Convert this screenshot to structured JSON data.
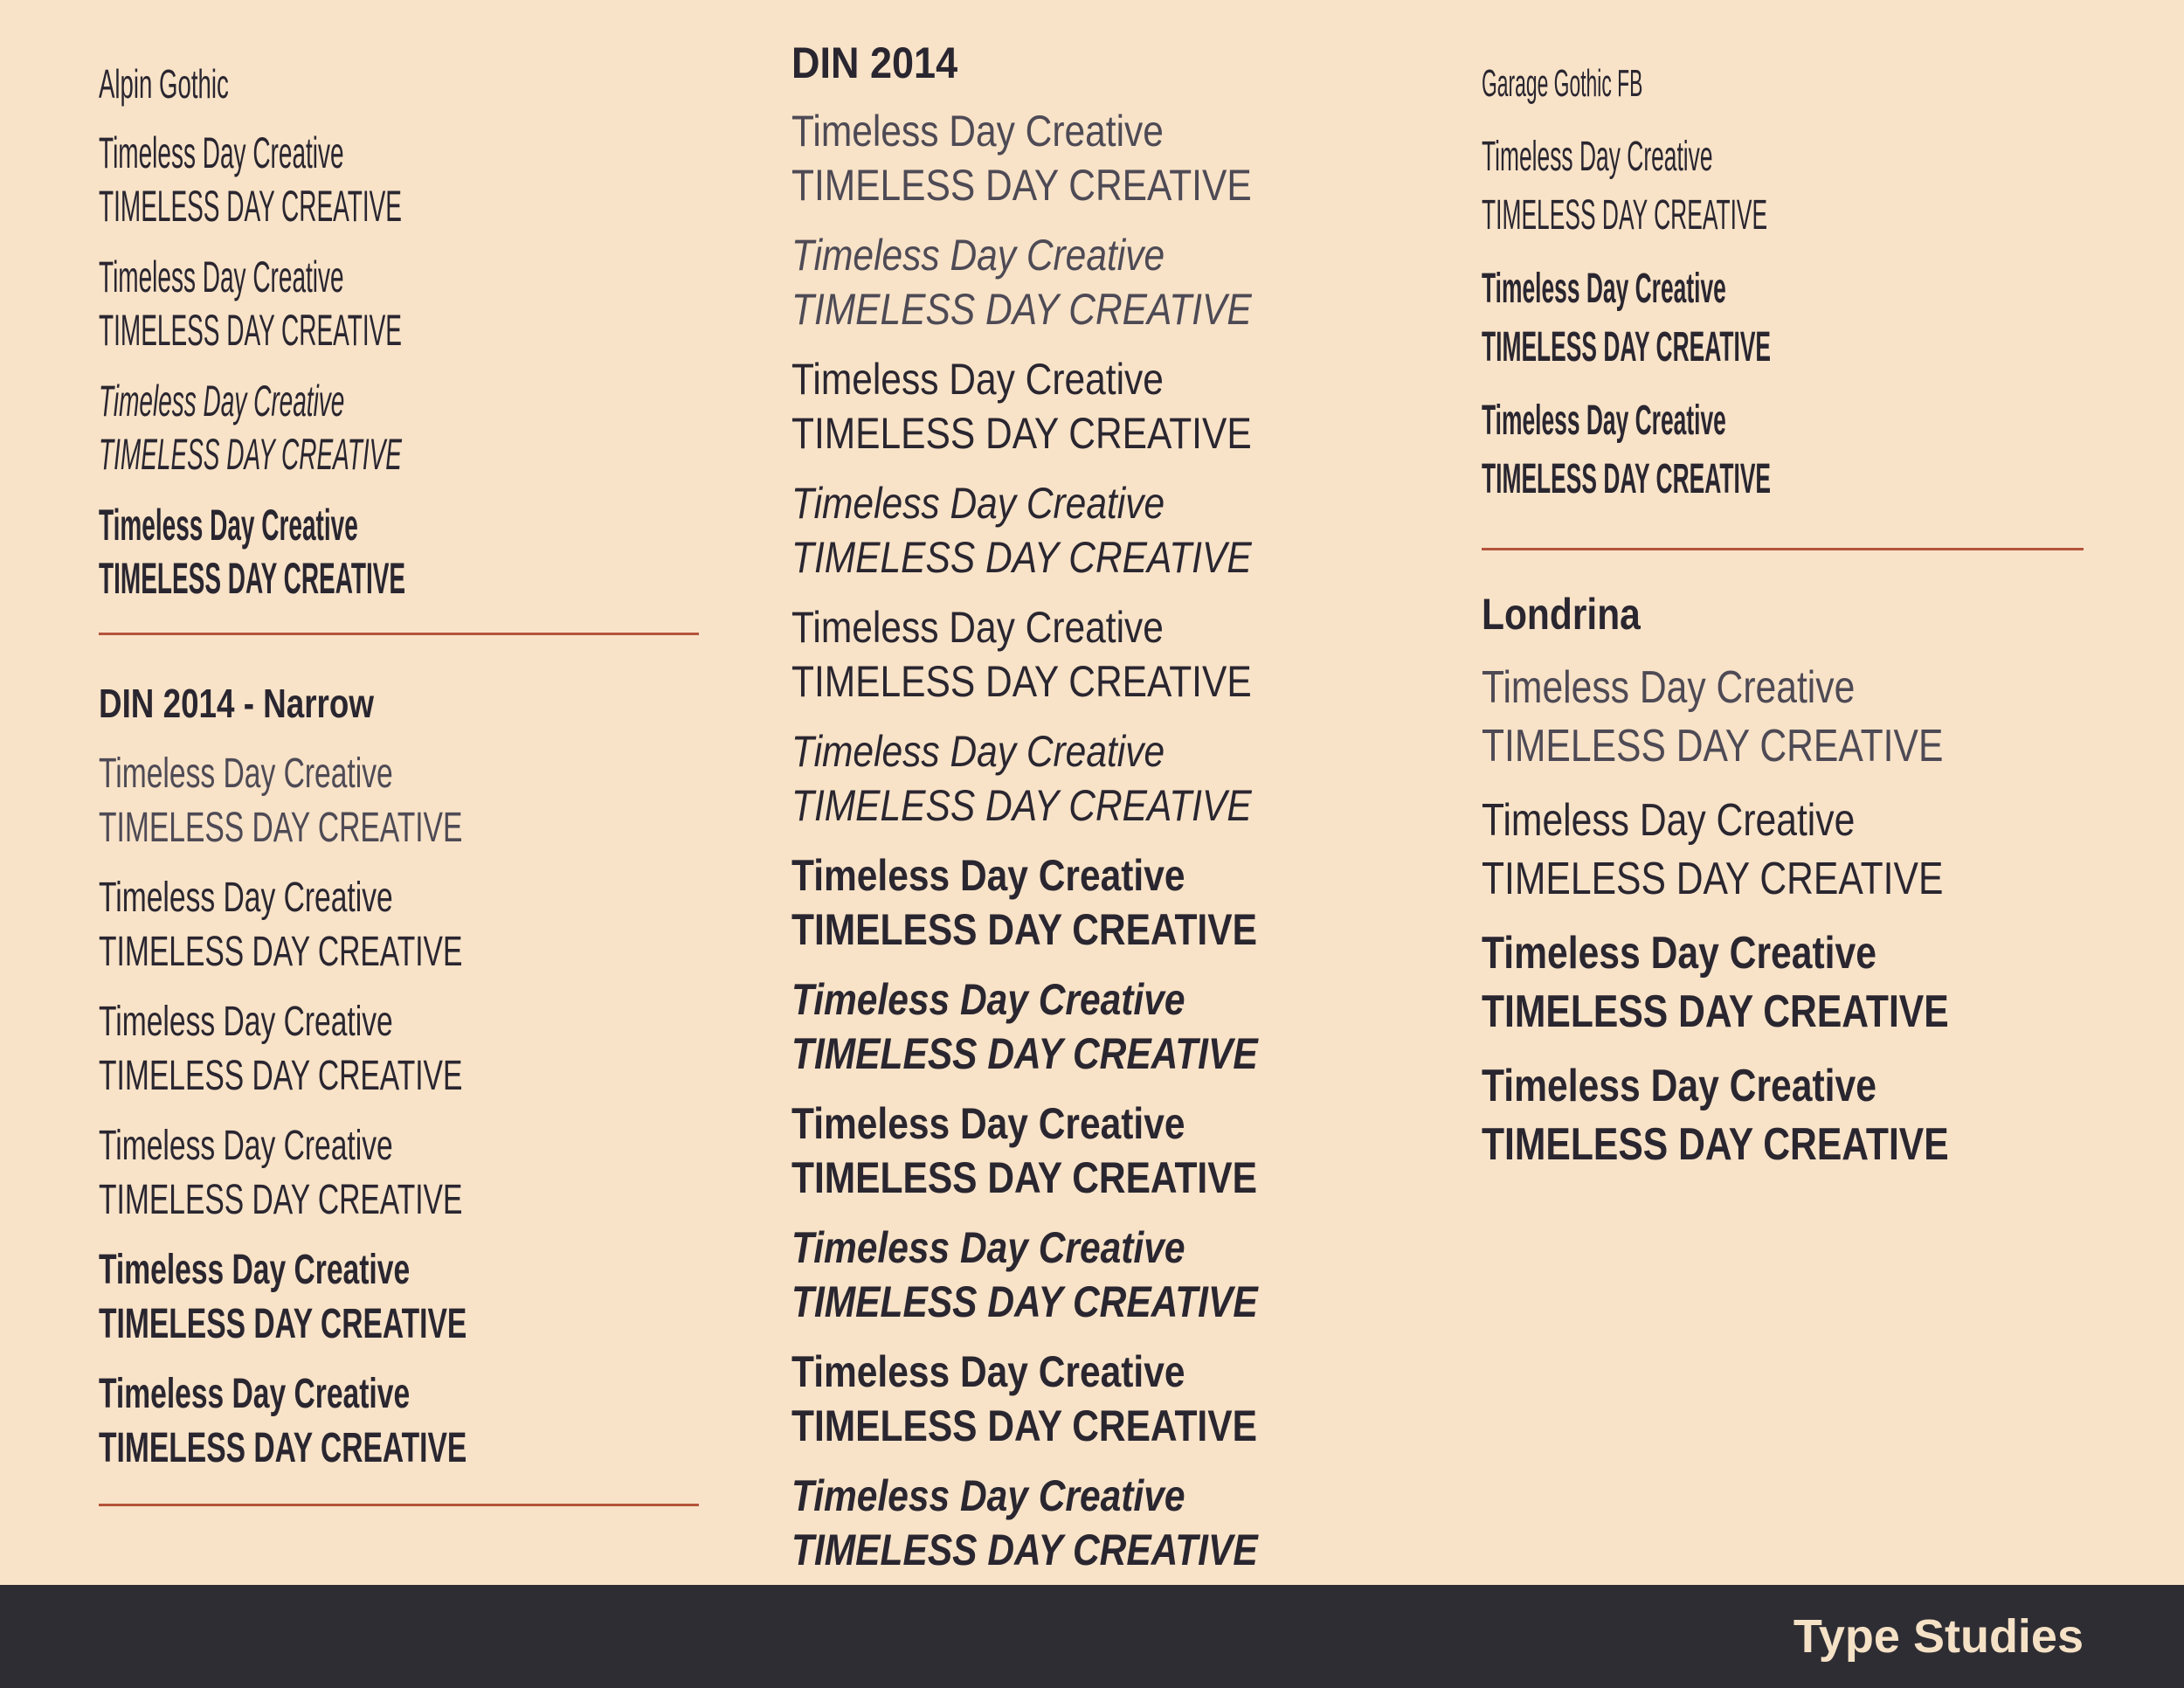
{
  "sections": [
    {
      "name": "Alpin Gothic",
      "samples": [
        {
          "mixed": "Timeless Day Creative",
          "upper": "TIMELESS DAY CREATIVE"
        },
        {
          "mixed": "Timeless Day Creative",
          "upper": "TIMELESS DAY CREATIVE"
        },
        {
          "mixed": "Timeless Day Creative",
          "upper": "TIMELESS DAY CREATIVE"
        },
        {
          "mixed": "Timeless Day Creative",
          "upper": "TIMELESS DAY CREATIVE"
        }
      ]
    },
    {
      "name": "DIN 2014 - Narrow",
      "samples": [
        {
          "mixed": "Timeless Day Creative",
          "upper": "TIMELESS DAY CREATIVE"
        },
        {
          "mixed": "Timeless Day Creative",
          "upper": "TIMELESS DAY CREATIVE"
        },
        {
          "mixed": "Timeless Day Creative",
          "upper": "TIMELESS DAY CREATIVE"
        },
        {
          "mixed": "Timeless Day Creative",
          "upper": "TIMELESS DAY CREATIVE"
        },
        {
          "mixed": "Timeless Day Creative",
          "upper": "TIMELESS DAY CREATIVE"
        },
        {
          "mixed": "Timeless Day Creative",
          "upper": "TIMELESS DAY CREATIVE"
        }
      ]
    },
    {
      "name": "DIN 2014",
      "samples": [
        {
          "mixed": "Timeless Day Creative",
          "upper": "TIMELESS DAY CREATIVE"
        },
        {
          "mixed": "Timeless Day Creative",
          "upper": "TIMELESS DAY CREATIVE"
        },
        {
          "mixed": "Timeless Day Creative",
          "upper": "TIMELESS DAY CREATIVE"
        },
        {
          "mixed": "Timeless Day Creative",
          "upper": "TIMELESS DAY CREATIVE"
        },
        {
          "mixed": "Timeless Day Creative",
          "upper": "TIMELESS DAY CREATIVE"
        },
        {
          "mixed": "Timeless Day Creative",
          "upper": "TIMELESS DAY CREATIVE"
        },
        {
          "mixed": "Timeless Day Creative",
          "upper": "TIMELESS DAY CREATIVE"
        },
        {
          "mixed": "Timeless Day Creative",
          "upper": "TIMELESS DAY CREATIVE"
        },
        {
          "mixed": "Timeless Day Creative",
          "upper": "TIMELESS DAY CREATIVE"
        },
        {
          "mixed": "Timeless Day Creative",
          "upper": "TIMELESS DAY CREATIVE"
        },
        {
          "mixed": "Timeless Day Creative",
          "upper": "TIMELESS DAY CREATIVE"
        },
        {
          "mixed": "Timeless Day Creative",
          "upper": "TIMELESS DAY CREATIVE"
        }
      ]
    },
    {
      "name": "Garage Gothic FB",
      "samples": [
        {
          "mixed": "Timeless Day Creative",
          "upper": "TIMELESS DAY CREATIVE"
        },
        {
          "mixed": "Timeless Day Creative",
          "upper": "TIMELESS DAY CREATIVE"
        },
        {
          "mixed": "Timeless Day Creative",
          "upper": "TIMELESS DAY CREATIVE"
        }
      ]
    },
    {
      "name": "Londrina",
      "samples": [
        {
          "mixed": "Timeless Day Creative",
          "upper": "TIMELESS DAY CREATIVE"
        },
        {
          "mixed": "Timeless Day Creative",
          "upper": "TIMELESS DAY CREATIVE"
        },
        {
          "mixed": "Timeless Day Creative",
          "upper": "TIMELESS DAY CREATIVE"
        },
        {
          "mixed": "Timeless Day Creative",
          "upper": "TIMELESS DAY CREATIVE"
        }
      ]
    }
  ],
  "footer": "Type Studies"
}
